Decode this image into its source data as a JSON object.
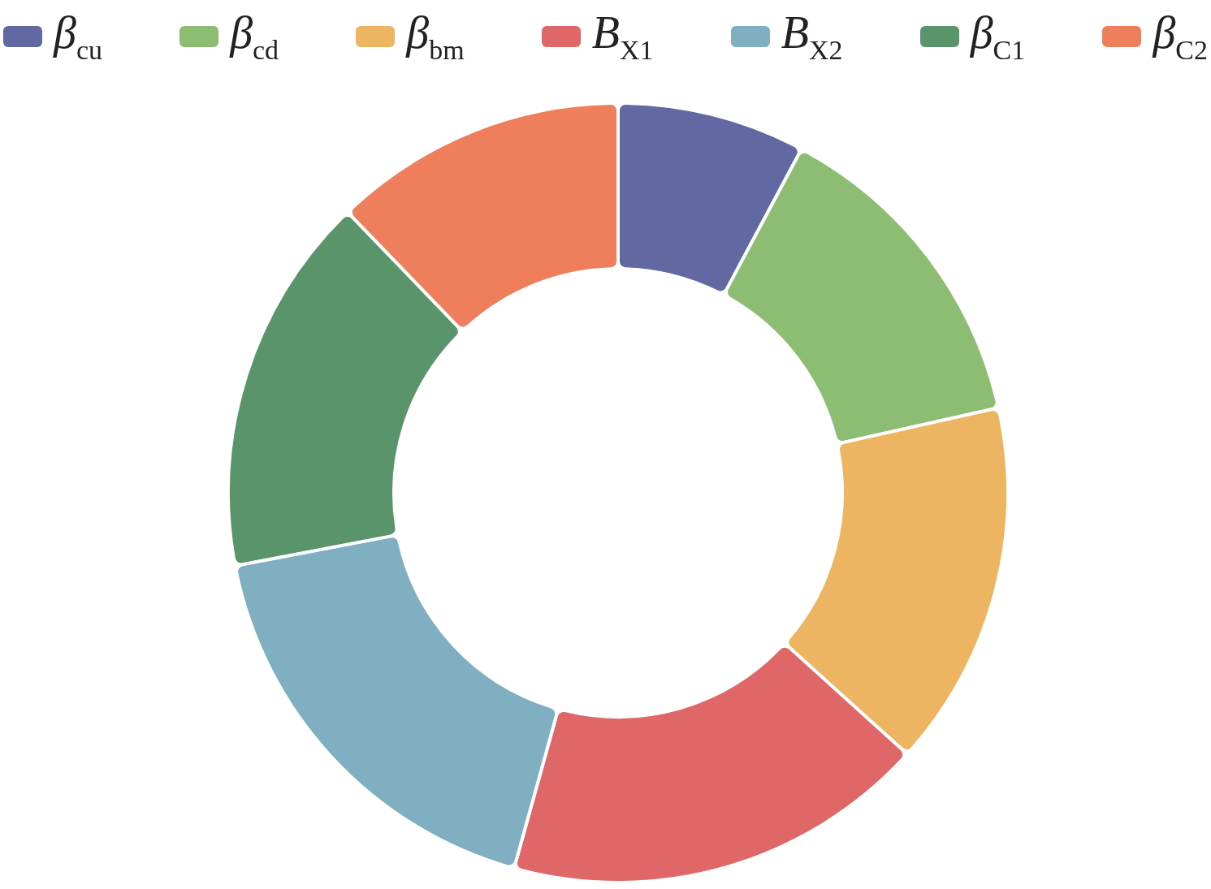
{
  "chart_data": {
    "type": "donut",
    "categories": [
      "β$_{cu}$",
      "β$_{cd}$",
      "β$_{bm}$",
      "B$_{X1}$",
      "B$_{X2}$",
      "β$_{C1}$",
      "β$_{C2}$"
    ],
    "values": [
      7.8,
      13.7,
      15.2,
      17.6,
      17.7,
      15.8,
      12.2
    ],
    "colors": [
      "#6268a2",
      "#8dbd72",
      "#edb562",
      "#e06767",
      "#80afc2",
      "#5a946b",
      "#ef7f5c"
    ],
    "legend": "top"
  }
}
